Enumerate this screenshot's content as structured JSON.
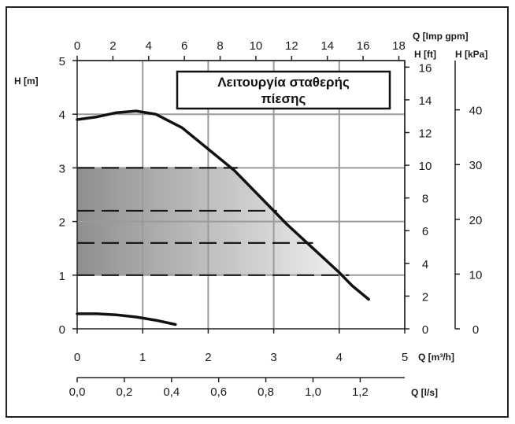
{
  "chart_data": {
    "type": "line",
    "title": "Λειτουργία σταθερής πίεσης",
    "title_lines": [
      "Λειτουργία σταθερής",
      "πίεσης"
    ],
    "x_axes": {
      "q_m3h": {
        "label": "Q [m³/h]",
        "range": [
          0,
          5
        ],
        "ticks": [
          "0",
          "1",
          "2",
          "3",
          "4",
          "5"
        ]
      },
      "q_ls": {
        "label": "Q [l/s]",
        "range": [
          0,
          1.389
        ],
        "ticks": [
          "0,0",
          "0,2",
          "0,4",
          "0,6",
          "0,8",
          "1,0",
          "1,2"
        ]
      },
      "q_imp": {
        "label": "Q [Imp gpm]",
        "range": [
          0,
          18.33
        ],
        "ticks": [
          "0",
          "2",
          "4",
          "6",
          "8",
          "10",
          "12",
          "14",
          "16",
          "18"
        ]
      }
    },
    "y_axes": {
      "h_m": {
        "label": "H [m]",
        "range": [
          0,
          5
        ],
        "ticks": [
          "0",
          "1",
          "2",
          "3",
          "4",
          "5"
        ]
      },
      "h_ft": {
        "label": "H [ft]",
        "range": [
          0,
          16.4
        ],
        "ticks": [
          "0",
          "2",
          "4",
          "6",
          "8",
          "10",
          "12",
          "14",
          "16"
        ]
      },
      "h_kpa": {
        "label": "H [kPa]",
        "range": [
          0,
          49
        ],
        "ticks": [
          "0",
          "10",
          "20",
          "30",
          "40"
        ]
      }
    },
    "grid": true,
    "series": [
      {
        "x": [
          0,
          0.3,
          0.6,
          0.9,
          1.2,
          1.6,
          2.0,
          2.4,
          2.8,
          3.2,
          3.6,
          4.0,
          4.2,
          4.45
        ],
        "y": [
          3.9,
          3.95,
          4.03,
          4.06,
          4.0,
          3.75,
          3.35,
          2.95,
          2.45,
          1.95,
          1.5,
          1.05,
          0.8,
          0.55
        ]
      },
      {
        "x": [
          0,
          0.3,
          0.6,
          0.9,
          1.2,
          1.5
        ],
        "y": [
          0.28,
          0.28,
          0.26,
          0.22,
          0.16,
          0.08
        ]
      }
    ],
    "constant_pressure_lines": [
      {
        "y": 3.0,
        "x_end": 2.45
      },
      {
        "y": 2.2,
        "x_end": 3.05
      },
      {
        "y": 1.6,
        "x_end": 3.6
      },
      {
        "y": 1.0,
        "x_end": 4.15
      }
    ],
    "colors": {
      "curve": "#111111",
      "grid": "#9a9a9a",
      "shade_dark": "#8f8f8f",
      "shade_light": "#f2f2f2"
    }
  }
}
